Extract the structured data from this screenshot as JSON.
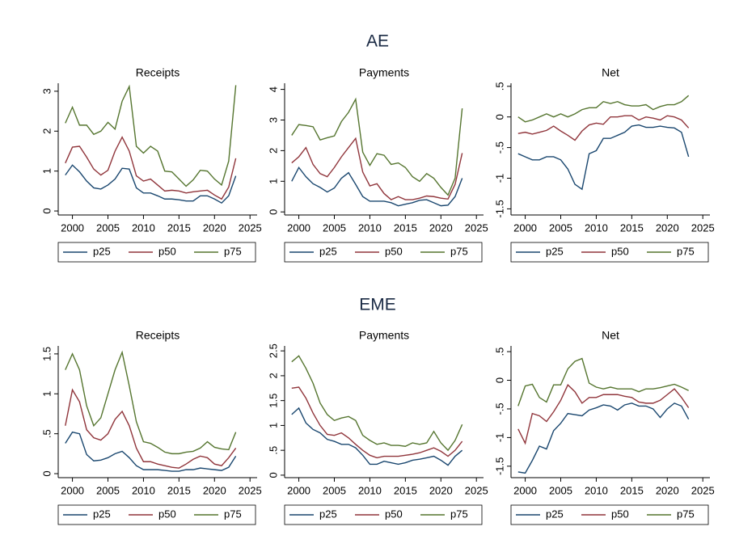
{
  "figure_titles": [
    "AE",
    "EME"
  ],
  "chart_data": [
    {
      "type": "line",
      "title": "Receipts",
      "x": [
        1999,
        2000,
        2001,
        2002,
        2003,
        2004,
        2005,
        2006,
        2007,
        2008,
        2009,
        2010,
        2011,
        2012,
        2013,
        2014,
        2015,
        2016,
        2017,
        2018,
        2019,
        2020,
        2021,
        2022,
        2023
      ],
      "xlim": [
        1998,
        2026
      ],
      "xticks": [
        2000,
        2005,
        2010,
        2015,
        2020,
        2025
      ],
      "ylim": [
        -0.1,
        3.2
      ],
      "yticks": [
        0,
        1,
        2,
        3
      ],
      "series": [
        {
          "name": "p25",
          "color": "#1a476f",
          "values": [
            0.9,
            1.15,
            0.98,
            0.75,
            0.58,
            0.55,
            0.65,
            0.8,
            1.07,
            1.05,
            0.58,
            0.45,
            0.45,
            0.38,
            0.3,
            0.3,
            0.28,
            0.25,
            0.25,
            0.38,
            0.38,
            0.3,
            0.2,
            0.38,
            0.88
          ]
        },
        {
          "name": "p50",
          "color": "#90353b",
          "values": [
            1.2,
            1.6,
            1.62,
            1.35,
            1.05,
            0.9,
            1.02,
            1.5,
            1.85,
            1.5,
            0.88,
            0.75,
            0.8,
            0.65,
            0.5,
            0.52,
            0.5,
            0.45,
            0.48,
            0.5,
            0.52,
            0.4,
            0.3,
            0.6,
            1.32
          ]
        },
        {
          "name": "p75",
          "color": "#55752f",
          "values": [
            2.2,
            2.6,
            2.15,
            2.15,
            1.92,
            2.0,
            2.22,
            2.05,
            2.75,
            3.12,
            1.62,
            1.45,
            1.62,
            1.5,
            1.0,
            0.98,
            0.8,
            0.62,
            0.78,
            1.02,
            1.0,
            0.8,
            0.65,
            1.25,
            3.15
          ]
        }
      ]
    },
    {
      "type": "line",
      "title": "Payments",
      "x": [
        1999,
        2000,
        2001,
        2002,
        2003,
        2004,
        2005,
        2006,
        2007,
        2008,
        2009,
        2010,
        2011,
        2012,
        2013,
        2014,
        2015,
        2016,
        2017,
        2018,
        2019,
        2020,
        2021,
        2022,
        2023
      ],
      "xlim": [
        1998,
        2026
      ],
      "xticks": [
        2000,
        2005,
        2010,
        2015,
        2020,
        2025
      ],
      "ylim": [
        -0.1,
        4.2
      ],
      "yticks": [
        0,
        1,
        2,
        3,
        4
      ],
      "series": [
        {
          "name": "p25",
          "color": "#1a476f",
          "values": [
            1.0,
            1.45,
            1.15,
            0.92,
            0.8,
            0.65,
            0.78,
            1.1,
            1.28,
            0.9,
            0.5,
            0.35,
            0.35,
            0.35,
            0.3,
            0.2,
            0.25,
            0.3,
            0.38,
            0.4,
            0.3,
            0.2,
            0.22,
            0.5,
            1.1
          ]
        },
        {
          "name": "p50",
          "color": "#90353b",
          "values": [
            1.6,
            1.8,
            2.1,
            1.55,
            1.25,
            1.15,
            1.45,
            1.8,
            2.1,
            2.4,
            1.3,
            0.85,
            0.92,
            0.6,
            0.4,
            0.5,
            0.4,
            0.4,
            0.45,
            0.52,
            0.5,
            0.45,
            0.42,
            0.9,
            1.92
          ]
        },
        {
          "name": "p75",
          "color": "#55752f",
          "values": [
            2.5,
            2.85,
            2.82,
            2.78,
            2.35,
            2.42,
            2.48,
            2.95,
            3.25,
            3.68,
            1.95,
            1.52,
            1.9,
            1.85,
            1.55,
            1.6,
            1.45,
            1.15,
            1.0,
            1.25,
            1.1,
            0.8,
            0.55,
            1.1,
            3.38
          ]
        }
      ]
    },
    {
      "type": "line",
      "title": "Net",
      "x": [
        1999,
        2000,
        2001,
        2002,
        2003,
        2004,
        2005,
        2006,
        2007,
        2008,
        2009,
        2010,
        2011,
        2012,
        2013,
        2014,
        2015,
        2016,
        2017,
        2018,
        2019,
        2020,
        2021,
        2022,
        2023
      ],
      "xlim": [
        1998,
        2026
      ],
      "xticks": [
        2000,
        2005,
        2010,
        2015,
        2020,
        2025
      ],
      "ylim": [
        -1.6,
        0.55
      ],
      "yticks": [
        {
          "value": 0.5,
          "label": ".5"
        },
        0,
        {
          "value": -0.5,
          "label": "-.5"
        },
        -1,
        -1.5
      ],
      "series": [
        {
          "name": "p25",
          "color": "#1a476f",
          "values": [
            -0.6,
            -0.65,
            -0.7,
            -0.7,
            -0.65,
            -0.65,
            -0.7,
            -0.85,
            -1.1,
            -1.18,
            -0.6,
            -0.55,
            -0.35,
            -0.35,
            -0.3,
            -0.25,
            -0.15,
            -0.13,
            -0.17,
            -0.17,
            -0.15,
            -0.17,
            -0.18,
            -0.25,
            -0.65
          ]
        },
        {
          "name": "p50",
          "color": "#90353b",
          "values": [
            -0.27,
            -0.25,
            -0.28,
            -0.25,
            -0.22,
            -0.15,
            -0.23,
            -0.3,
            -0.38,
            -0.23,
            -0.13,
            -0.1,
            -0.12,
            0,
            0,
            0.02,
            0.02,
            -0.05,
            0,
            -0.02,
            -0.05,
            0.02,
            0,
            -0.05,
            -0.18
          ]
        },
        {
          "name": "p75",
          "color": "#55752f",
          "values": [
            0,
            -0.08,
            -0.05,
            0,
            0.05,
            0,
            0.05,
            0,
            0.05,
            0.12,
            0.15,
            0.15,
            0.25,
            0.22,
            0.25,
            0.2,
            0.18,
            0.18,
            0.2,
            0.12,
            0.17,
            0.2,
            0.2,
            0.25,
            0.35
          ]
        }
      ]
    },
    {
      "type": "line",
      "title": "Receipts",
      "x": [
        1999,
        2000,
        2001,
        2002,
        2003,
        2004,
        2005,
        2006,
        2007,
        2008,
        2009,
        2010,
        2011,
        2012,
        2013,
        2014,
        2015,
        2016,
        2017,
        2018,
        2019,
        2020,
        2021,
        2022,
        2023
      ],
      "xlim": [
        1998,
        2026
      ],
      "xticks": [
        2000,
        2005,
        2010,
        2015,
        2020,
        2025
      ],
      "ylim": [
        -0.05,
        1.6
      ],
      "yticks": [
        0,
        {
          "value": 0.5,
          "label": ".5"
        },
        1,
        1.5
      ],
      "series": [
        {
          "name": "p25",
          "color": "#1a476f",
          "values": [
            0.38,
            0.52,
            0.5,
            0.24,
            0.16,
            0.17,
            0.2,
            0.25,
            0.28,
            0.2,
            0.1,
            0.05,
            0.05,
            0.05,
            0.04,
            0.03,
            0.03,
            0.05,
            0.05,
            0.07,
            0.06,
            0.05,
            0.04,
            0.08,
            0.22
          ]
        },
        {
          "name": "p50",
          "color": "#90353b",
          "values": [
            0.6,
            1.05,
            0.9,
            0.55,
            0.45,
            0.42,
            0.5,
            0.68,
            0.78,
            0.6,
            0.32,
            0.15,
            0.15,
            0.12,
            0.1,
            0.08,
            0.07,
            0.12,
            0.18,
            0.22,
            0.2,
            0.12,
            0.1,
            0.2,
            0.32
          ]
        },
        {
          "name": "p75",
          "color": "#55752f",
          "values": [
            1.3,
            1.5,
            1.3,
            0.85,
            0.6,
            0.7,
            1.0,
            1.3,
            1.52,
            1.1,
            0.65,
            0.4,
            0.38,
            0.33,
            0.27,
            0.25,
            0.25,
            0.27,
            0.28,
            0.32,
            0.4,
            0.33,
            0.31,
            0.3,
            0.52
          ]
        }
      ]
    },
    {
      "type": "line",
      "title": "Payments",
      "x": [
        1999,
        2000,
        2001,
        2002,
        2003,
        2004,
        2005,
        2006,
        2007,
        2008,
        2009,
        2010,
        2011,
        2012,
        2013,
        2014,
        2015,
        2016,
        2017,
        2018,
        2019,
        2020,
        2021,
        2022,
        2023
      ],
      "xlim": [
        1998,
        2026
      ],
      "xticks": [
        2000,
        2005,
        2010,
        2015,
        2020,
        2025
      ],
      "ylim": [
        -0.05,
        2.6
      ],
      "yticks": [
        0,
        {
          "value": 0.5,
          "label": ".5"
        },
        1,
        1.5,
        2,
        2.5
      ],
      "series": [
        {
          "name": "p25",
          "color": "#1a476f",
          "values": [
            1.22,
            1.35,
            1.05,
            0.92,
            0.85,
            0.72,
            0.68,
            0.62,
            0.62,
            0.55,
            0.4,
            0.22,
            0.22,
            0.28,
            0.25,
            0.22,
            0.25,
            0.3,
            0.32,
            0.35,
            0.38,
            0.3,
            0.2,
            0.38,
            0.5
          ]
        },
        {
          "name": "p50",
          "color": "#90353b",
          "values": [
            1.75,
            1.77,
            1.55,
            1.25,
            1.0,
            0.82,
            0.8,
            0.85,
            0.75,
            0.62,
            0.5,
            0.4,
            0.35,
            0.38,
            0.38,
            0.38,
            0.4,
            0.42,
            0.45,
            0.5,
            0.55,
            0.48,
            0.38,
            0.5,
            0.68
          ]
        },
        {
          "name": "p75",
          "color": "#55752f",
          "values": [
            2.28,
            2.4,
            2.15,
            1.85,
            1.45,
            1.22,
            1.1,
            1.15,
            1.18,
            1.1,
            0.8,
            0.7,
            0.62,
            0.65,
            0.6,
            0.6,
            0.58,
            0.65,
            0.62,
            0.65,
            0.88,
            0.65,
            0.5,
            0.7,
            1.02
          ]
        }
      ]
    },
    {
      "type": "line",
      "title": "Net",
      "x": [
        1999,
        2000,
        2001,
        2002,
        2003,
        2004,
        2005,
        2006,
        2007,
        2008,
        2009,
        2010,
        2011,
        2012,
        2013,
        2014,
        2015,
        2016,
        2017,
        2018,
        2019,
        2020,
        2021,
        2022,
        2023
      ],
      "xlim": [
        1998,
        2026
      ],
      "xticks": [
        2000,
        2005,
        2010,
        2015,
        2020,
        2025
      ],
      "ylim": [
        -1.7,
        0.6
      ],
      "yticks": [
        {
          "value": 0.5,
          "label": ".5"
        },
        0,
        {
          "value": -0.5,
          "label": "-.5"
        },
        -1,
        -1.5
      ],
      "series": [
        {
          "name": "p25",
          "color": "#1a476f",
          "values": [
            -1.6,
            -1.62,
            -1.4,
            -1.15,
            -1.2,
            -0.88,
            -0.75,
            -0.58,
            -0.6,
            -0.62,
            -0.52,
            -0.48,
            -0.43,
            -0.45,
            -0.52,
            -0.43,
            -0.4,
            -0.45,
            -0.45,
            -0.5,
            -0.65,
            -0.5,
            -0.4,
            -0.45,
            -0.68
          ]
        },
        {
          "name": "p50",
          "color": "#90353b",
          "values": [
            -0.85,
            -1.1,
            -0.58,
            -0.62,
            -0.72,
            -0.55,
            -0.35,
            -0.08,
            -0.2,
            -0.4,
            -0.3,
            -0.3,
            -0.25,
            -0.25,
            -0.25,
            -0.28,
            -0.3,
            -0.38,
            -0.4,
            -0.4,
            -0.35,
            -0.25,
            -0.15,
            -0.3,
            -0.48
          ]
        },
        {
          "name": "p75",
          "color": "#55752f",
          "values": [
            -0.45,
            -0.1,
            -0.07,
            -0.3,
            -0.38,
            -0.08,
            -0.08,
            0.2,
            0.33,
            0.38,
            -0.05,
            -0.12,
            -0.15,
            -0.12,
            -0.15,
            -0.15,
            -0.15,
            -0.2,
            -0.15,
            -0.15,
            -0.13,
            -0.1,
            -0.07,
            -0.12,
            -0.18
          ]
        }
      ]
    }
  ]
}
